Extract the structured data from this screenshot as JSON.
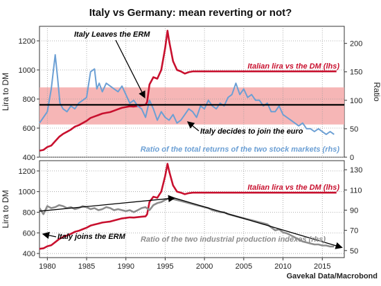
{
  "title": "Italy vs Germany: mean reverting or not?",
  "source": "Gavekal Data/Macrobond",
  "colors": {
    "lira": "#c8102e",
    "stocks": "#6b9fd4",
    "production": "#8c8c8c",
    "band": "#f4a9a9",
    "mean": "#000000",
    "grid": "#9a9a9a"
  },
  "x_ticks": [
    1980,
    1985,
    1990,
    1995,
    2000,
    2005,
    2010,
    2015
  ],
  "chart_data": [
    {
      "type": "line",
      "title": "",
      "ylabel": "Lira to DM",
      "y2label": "Ratio",
      "xlim": [
        1979,
        2017.8
      ],
      "ylim": [
        400,
        1300
      ],
      "y2lim": [
        0,
        230
      ],
      "yticks": [
        400,
        600,
        800,
        1000,
        1200
      ],
      "y2ticks": [
        0,
        50,
        100,
        150,
        200
      ],
      "band": [
        625,
        880
      ],
      "mean_line": 760,
      "annotations": [
        {
          "text": "Italy Leaves the ERM",
          "at": [
            1992.7,
            760
          ]
        },
        {
          "text": "Italy decides to join the euro",
          "at": [
            1996.5,
            685
          ]
        }
      ],
      "series": [
        {
          "name": "Italian lira vs the DM (lhs)",
          "axis": "left",
          "x": [
            1979.0,
            1979.5,
            1980.0,
            1980.5,
            1981.0,
            1981.5,
            1982.0,
            1982.5,
            1983.0,
            1983.5,
            1984.0,
            1984.5,
            1985.0,
            1985.5,
            1986.0,
            1986.5,
            1987.0,
            1987.5,
            1988.0,
            1988.5,
            1989.0,
            1989.5,
            1990.0,
            1990.5,
            1991.0,
            1991.5,
            1992.0,
            1992.5,
            1992.7,
            1993.0,
            1993.5,
            1994.0,
            1994.5,
            1995.0,
            1995.3,
            1995.5,
            1996.0,
            1996.5,
            1997.0,
            1997.5,
            1998.0,
            1998.5,
            1999.0,
            2005.0,
            2010.0,
            2016.8
          ],
          "values": [
            445,
            450,
            470,
            480,
            510,
            540,
            560,
            575,
            590,
            610,
            620,
            635,
            650,
            670,
            680,
            690,
            700,
            705,
            710,
            720,
            730,
            740,
            745,
            750,
            748,
            752,
            757,
            760,
            780,
            900,
            950,
            940,
            1000,
            1150,
            1270,
            1200,
            1060,
            1000,
            990,
            975,
            985,
            990,
            990,
            990,
            990,
            990
          ]
        },
        {
          "name": "Ratio of the total returns of the two stock markets (rhs)",
          "axis": "right",
          "x": [
            1979.0,
            1979.5,
            1980.0,
            1980.5,
            1981.0,
            1981.3,
            1981.6,
            1982.0,
            1982.5,
            1983.0,
            1983.5,
            1984.0,
            1984.5,
            1985.0,
            1985.5,
            1986.0,
            1986.3,
            1986.6,
            1987.0,
            1987.5,
            1988.0,
            1988.5,
            1989.0,
            1989.5,
            1990.0,
            1990.5,
            1991.0,
            1991.5,
            1992.0,
            1992.5,
            1993.0,
            1993.5,
            1994.0,
            1994.5,
            1995.0,
            1995.5,
            1996.0,
            1996.5,
            1997.0,
            1997.5,
            1998.0,
            1998.5,
            1999.0,
            1999.5,
            2000.0,
            2000.5,
            2001.0,
            2001.5,
            2002.0,
            2002.5,
            2003.0,
            2003.5,
            2004.0,
            2004.5,
            2005.0,
            2005.5,
            2006.0,
            2006.5,
            2007.0,
            2007.5,
            2008.0,
            2008.5,
            2009.0,
            2009.5,
            2010.0,
            2010.5,
            2011.0,
            2011.5,
            2012.0,
            2012.5,
            2013.0,
            2013.5,
            2014.0,
            2014.5,
            2015.0,
            2015.5,
            2016.0,
            2016.5
          ],
          "values": [
            60,
            70,
            80,
            120,
            180,
            140,
            95,
            85,
            80,
            90,
            85,
            95,
            100,
            105,
            150,
            155,
            120,
            130,
            115,
            130,
            125,
            120,
            115,
            125,
            110,
            95,
            100,
            90,
            85,
            70,
            100,
            85,
            65,
            80,
            70,
            65,
            75,
            60,
            65,
            75,
            85,
            80,
            70,
            90,
            85,
            100,
            90,
            85,
            95,
            90,
            105,
            110,
            130,
            110,
            120,
            105,
            110,
            100,
            100,
            90,
            95,
            80,
            80,
            90,
            75,
            70,
            65,
            60,
            55,
            60,
            50,
            50,
            45,
            50,
            45,
            40,
            45,
            40
          ]
        }
      ]
    },
    {
      "type": "line",
      "title": "",
      "ylabel": "Lira to DM",
      "xlabel": "",
      "xlim": [
        1979,
        2017.8
      ],
      "ylim": [
        360,
        1300
      ],
      "y2lim": [
        43,
        139
      ],
      "yticks": [
        400,
        600,
        800,
        1000,
        1200
      ],
      "y2ticks": [
        50,
        70,
        90,
        110,
        130
      ],
      "annotations": [
        {
          "text": "Italy joins the ERM",
          "at": [
            1979.2,
            450
          ]
        }
      ],
      "trend_lines": [
        {
          "axis": "right",
          "x": [
            1979.0,
            1996.2
          ],
          "values": [
            89,
            102
          ]
        },
        {
          "axis": "right",
          "x": [
            1996.2,
            2017.5
          ],
          "values": [
            102,
            53
          ]
        }
      ],
      "series": [
        {
          "name": "Italian lira vs the DM (lhs)",
          "axis": "left",
          "x": [
            1979.0,
            1979.5,
            1980.0,
            1980.5,
            1981.0,
            1981.5,
            1982.0,
            1982.5,
            1983.0,
            1983.5,
            1984.0,
            1984.5,
            1985.0,
            1985.5,
            1986.0,
            1986.5,
            1987.0,
            1987.5,
            1988.0,
            1988.5,
            1989.0,
            1989.5,
            1990.0,
            1990.5,
            1991.0,
            1991.5,
            1992.0,
            1992.5,
            1992.7,
            1993.0,
            1993.5,
            1994.0,
            1994.5,
            1995.0,
            1995.3,
            1995.5,
            1996.0,
            1996.5,
            1997.0,
            1997.5,
            1998.0,
            1998.5,
            1999.0,
            2005.0,
            2010.0,
            2016.8
          ],
          "values": [
            445,
            450,
            470,
            480,
            510,
            540,
            560,
            575,
            590,
            610,
            620,
            635,
            650,
            670,
            680,
            690,
            700,
            705,
            710,
            720,
            730,
            740,
            745,
            750,
            748,
            752,
            757,
            760,
            780,
            900,
            950,
            940,
            1000,
            1150,
            1270,
            1200,
            1060,
            1000,
            990,
            975,
            985,
            990,
            990,
            990,
            990,
            990
          ]
        },
        {
          "name": "Ratio of the two industrial production indexes (rhs)",
          "axis": "right",
          "x": [
            1979.0,
            1979.5,
            1980.0,
            1980.5,
            1981.0,
            1981.5,
            1982.0,
            1982.5,
            1983.0,
            1983.5,
            1984.0,
            1984.5,
            1985.0,
            1985.5,
            1986.0,
            1986.5,
            1987.0,
            1987.5,
            1988.0,
            1988.5,
            1989.0,
            1989.5,
            1990.0,
            1990.5,
            1991.0,
            1991.5,
            1992.0,
            1992.5,
            1993.0,
            1993.5,
            1994.0,
            1994.5,
            1995.0,
            1995.5,
            1996.0,
            1996.5,
            1997.0,
            1997.5,
            1998.0,
            1998.5,
            1999.0,
            1999.5,
            2000.0,
            2000.5,
            2001.0,
            2001.5,
            2002.0,
            2002.5,
            2003.0,
            2003.5,
            2004.0,
            2004.5,
            2005.0,
            2005.5,
            2006.0,
            2006.5,
            2007.0,
            2007.5,
            2008.0,
            2008.5,
            2009.0,
            2009.5,
            2010.0,
            2010.5,
            2011.0,
            2011.5,
            2012.0,
            2012.5,
            2013.0,
            2013.5,
            2014.0,
            2014.5,
            2015.0,
            2015.5,
            2016.0,
            2016.5
          ],
          "values": [
            92,
            86,
            94,
            92,
            93,
            95,
            94,
            92,
            93,
            91,
            92,
            94,
            93,
            91,
            92,
            90,
            91,
            93,
            92,
            90,
            91,
            90,
            89,
            90,
            88,
            90,
            92,
            93,
            90,
            95,
            97,
            98,
            100,
            102,
            101,
            100,
            99,
            98,
            97,
            96,
            95,
            94,
            93,
            92,
            90,
            89,
            88,
            88,
            86,
            85,
            84,
            83,
            82,
            81,
            80,
            79,
            78,
            77,
            76,
            73,
            70,
            71,
            68,
            67,
            65,
            63,
            61,
            59,
            58,
            57,
            56,
            56,
            55,
            55,
            54,
            54
          ]
        }
      ]
    }
  ]
}
